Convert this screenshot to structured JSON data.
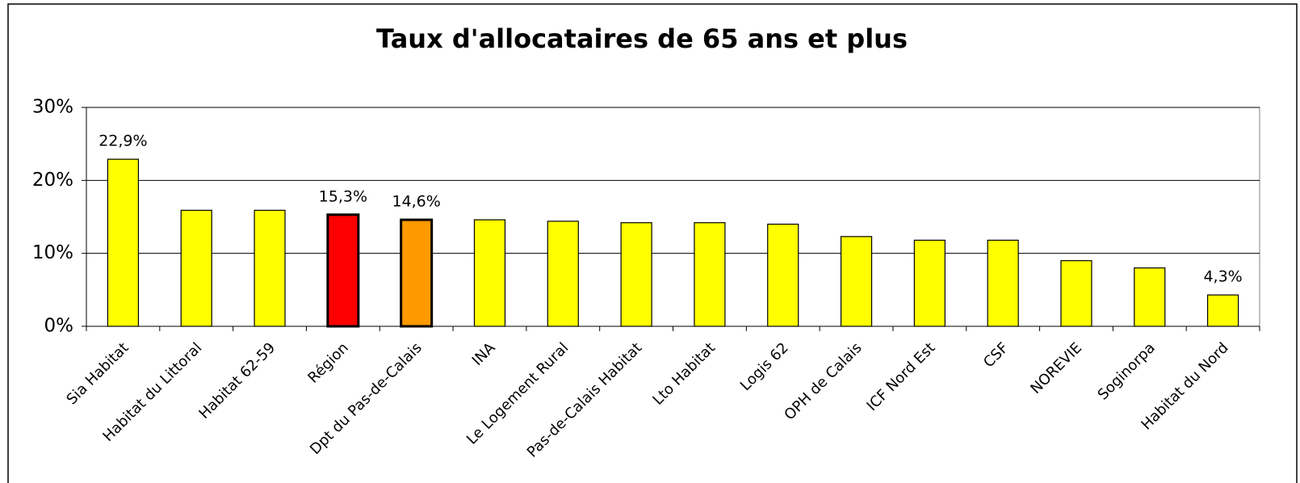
{
  "chart_data": {
    "type": "bar",
    "title": "Taux d'allocataires de 65 ans et plus",
    "categories": [
      "Sia Habitat",
      "Habitat du Littoral",
      "Habitat 62-59",
      "Région",
      "Dpt du Pas-de-Calais",
      "INA",
      "Le Logement Rural",
      "Pas-de-Calais Habitat",
      "Lto Habitat",
      "Logis 62",
      "OPH de Calais",
      "ICF Nord Est",
      "CSF",
      "NOREVIE",
      "Soginorpa",
      "Habitat du Nord"
    ],
    "values": [
      22.9,
      15.9,
      15.9,
      15.3,
      14.6,
      14.6,
      14.4,
      14.2,
      14.2,
      14.0,
      12.3,
      11.8,
      11.8,
      9.0,
      8.0,
      4.3
    ],
    "value_labels": [
      "22,9%",
      null,
      null,
      "15,3%",
      "14,6%",
      null,
      null,
      null,
      null,
      null,
      null,
      null,
      null,
      null,
      null,
      "4,3%"
    ],
    "color": "#ffff00",
    "colors": [
      "#ffff00",
      "#ffff00",
      "#ffff00",
      "#ff0000",
      "#ff9900",
      "#ffff00",
      "#ffff00",
      "#ffff00",
      "#ffff00",
      "#ffff00",
      "#ffff00",
      "#ffff00",
      "#ffff00",
      "#ffff00",
      "#ffff00",
      "#ffff00"
    ],
    "ylim": [
      0,
      30
    ],
    "yticks": [
      {
        "value": 0,
        "label": "0%"
      },
      {
        "value": 10,
        "label": "10%"
      },
      {
        "value": 20,
        "label": "20%"
      },
      {
        "value": 30,
        "label": "30%"
      }
    ],
    "grid": true
  }
}
